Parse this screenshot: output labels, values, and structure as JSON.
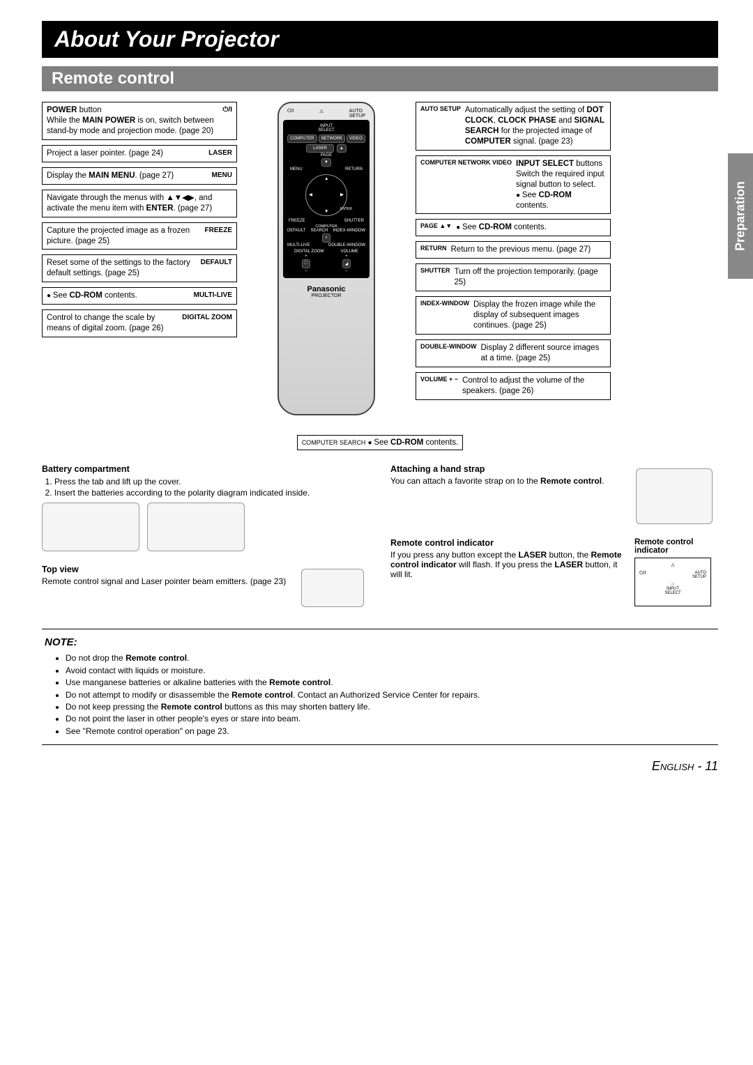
{
  "page": {
    "title": "About Your Projector",
    "subtitle": "Remote control",
    "side_tab": "Preparation",
    "footer": "English - 11"
  },
  "left": [
    {
      "tag": "⏻/I",
      "html": "<b>POWER</b> button<br>While the <b>MAIN POWER</b> is on, switch between stand-by mode and projection mode. (page 20)"
    },
    {
      "tag": "LASER",
      "html": "Project a laser pointer. (page 24)"
    },
    {
      "tag": "MENU",
      "html": "Display the <b>MAIN MENU</b>. (page 27)"
    },
    {
      "tag": "",
      "html": "Navigate through the menus with ▲▼◀▶, and activate the menu item with <b>ENTER</b>. (page 27)"
    },
    {
      "tag": "FREEZE",
      "html": "Capture the projected image as a frozen picture. (page 25)"
    },
    {
      "tag": "DEFAULT",
      "html": "Reset some of the settings to the factory default settings. (page 25)"
    },
    {
      "tag": "MULTI-LIVE",
      "html": "<span class='bullet-line'>See <b>CD-ROM</b> contents.</span>"
    },
    {
      "tag": "DIGITAL ZOOM",
      "html": "Control to change the scale by means of digital zoom. (page 26)"
    }
  ],
  "right": [
    {
      "tag": "AUTO SETUP",
      "html": "Automatically adjust the setting of <b>DOT CLOCK</b>, <b>CLOCK PHASE</b> and <b>SIGNAL SEARCH</b> for the projected image of <b>COMPUTER</b> signal. (page 23)"
    },
    {
      "tag": "COMPUTER NETWORK VIDEO",
      "html": "<b>INPUT SELECT</b> buttons<br>Switch the required input signal button to select.<br><span class='bullet-line'>See <b>CD-ROM</b> contents.</span>"
    },
    {
      "tag": "PAGE ▲▼",
      "html": "<span class='bullet-line'>See <b>CD-ROM</b> contents.</span>"
    },
    {
      "tag": "RETURN",
      "html": "Return to the previous menu. (page 27)"
    },
    {
      "tag": "SHUTTER",
      "html": "Turn off the projection temporarily. (page 25)"
    },
    {
      "tag": "INDEX-WINDOW",
      "html": "Display the frozen image while the display of subsequent images continues. (page 25)"
    },
    {
      "tag": "DOUBLE-WINDOW",
      "html": "Display 2 different source images at a time. (page 25)"
    },
    {
      "tag": "VOLUME + −",
      "html": "Control to adjust the volume of the speakers. (page 26)"
    }
  ],
  "bottom_callout": {
    "tag": "COMPUTER SEARCH",
    "html": "<span class='bullet-line'>See <b>CD-ROM</b> contents.</span>"
  },
  "remote": {
    "brand": "Panasonic",
    "sub": "PROJECTOR"
  },
  "battery": {
    "head": "Battery compartment",
    "steps": [
      "Press the tab and lift up the cover.",
      "Insert the batteries according to the polarity diagram indicated inside."
    ]
  },
  "topview": {
    "head": "Top view",
    "text": "Remote control signal and Laser pointer beam emitters. (page 23)"
  },
  "handstrap": {
    "head": "Attaching a hand strap",
    "html": "You can attach a favorite strap on to the <b>Remote control</b>."
  },
  "indicator": {
    "head": "Remote control indicator",
    "html": "If you press any button except the <b>LASER</b> button, the <b>Remote control indicator</b> will flash. If you press the <b>LASER</b> button, it will lit.",
    "label": "Remote control indicator"
  },
  "note": {
    "title": "NOTE:",
    "items": [
      "Do not drop the <b>Remote control</b>.",
      "Avoid contact with liquids or moisture.",
      "Use manganese batteries or alkaline batteries with the <b>Remote control</b>.",
      "Do not attempt to modify or disassemble the <b>Remote control</b>. Contact an Authorized Service Center for repairs.",
      "Do not keep pressing the <b>Remote control</b> buttons as this may shorten battery life.",
      "Do not point the laser in other people's eyes or stare into beam.",
      "See \"Remote control operation\" on page 23."
    ]
  }
}
